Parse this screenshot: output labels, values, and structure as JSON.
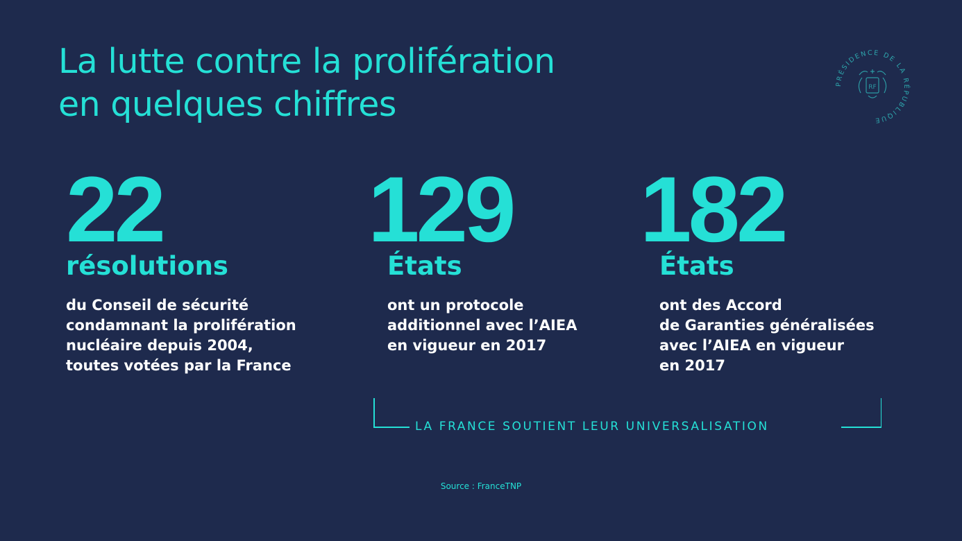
{
  "title": {
    "line1": "La lutte contre la prolifération",
    "line2": "en quelques chiffres"
  },
  "seal": {
    "text": "PRÉSIDENCE DE LA RÉPUBLIQUE",
    "icon": "presidency-seal-icon"
  },
  "stats": [
    {
      "number": "22",
      "unit": "résolutions",
      "desc": [
        "du Conseil de sécurité",
        "condamnant la prolifération",
        "nucléaire depuis 2004,",
        "toutes votées par la France"
      ]
    },
    {
      "number": "129",
      "unit": "États",
      "desc": [
        "ont un protocole",
        "additionnel avec l’AIEA",
        "en vigueur en 2017"
      ]
    },
    {
      "number": "182",
      "unit": "États",
      "desc": [
        "ont des Accord",
        "de Garanties généralisées",
        "avec l’AIEA en vigueur",
        "en 2017"
      ]
    }
  ],
  "bracket_label": "LA FRANCE SOUTIENT LEUR UNIVERSALISATION",
  "source": "Source : FranceTNP",
  "colors": {
    "background": "#1e2a4d",
    "accent": "#25e0d6",
    "text": "#ffffff"
  }
}
